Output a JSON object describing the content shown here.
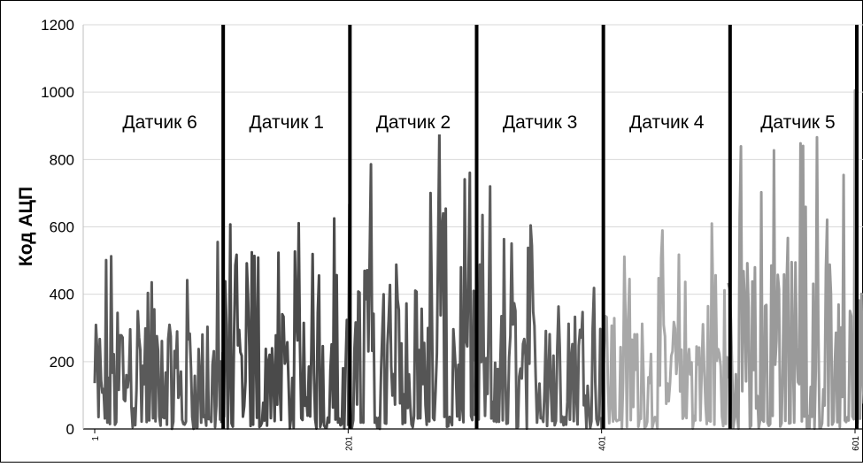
{
  "chart_data": {
    "type": "line",
    "title": "",
    "xlabel": "",
    "ylabel": "Код АЦП",
    "ylim": [
      0,
      1200
    ],
    "yticks": [
      "0",
      "200",
      "400",
      "600",
      "800",
      "1000",
      "1200"
    ],
    "xlim": [
      1,
      608
    ],
    "xticks": [
      {
        "value": 1,
        "label": "1"
      },
      {
        "value": 201,
        "label": "201"
      },
      {
        "value": 401,
        "label": "401"
      },
      {
        "value": 601,
        "label": "601"
      }
    ],
    "grid": "horizontal",
    "separators_x": [
      101,
      201,
      301,
      401,
      501,
      601
    ],
    "sections": [
      {
        "label": "Датчик 6",
        "x_start": 1,
        "x_end": 101,
        "color": "#5a5a5a",
        "peak_x": 98,
        "peak_value": 555
      },
      {
        "label": "Датчик 1",
        "x_start": 101,
        "x_end": 201,
        "color": "#4a4a4a",
        "peak_x": 190,
        "peak_value": 625
      },
      {
        "label": "Датчик 2",
        "x_start": 201,
        "x_end": 301,
        "color": "#555555",
        "peak_x": 273,
        "peak_value": 880
      },
      {
        "label": "Датчик 3",
        "x_start": 301,
        "x_end": 401,
        "color": "#5e5e5e",
        "peak_x": 313,
        "peak_value": 720
      },
      {
        "label": "Датчик 4",
        "x_start": 401,
        "x_end": 501,
        "color": "#a8a8a8",
        "peak_x": 488,
        "peak_value": 610
      },
      {
        "label": "Датчик 5",
        "x_start": 501,
        "x_end": 608,
        "color": "#9a9a9a",
        "peak_x": 601,
        "peak_value": 1005
      }
    ]
  }
}
